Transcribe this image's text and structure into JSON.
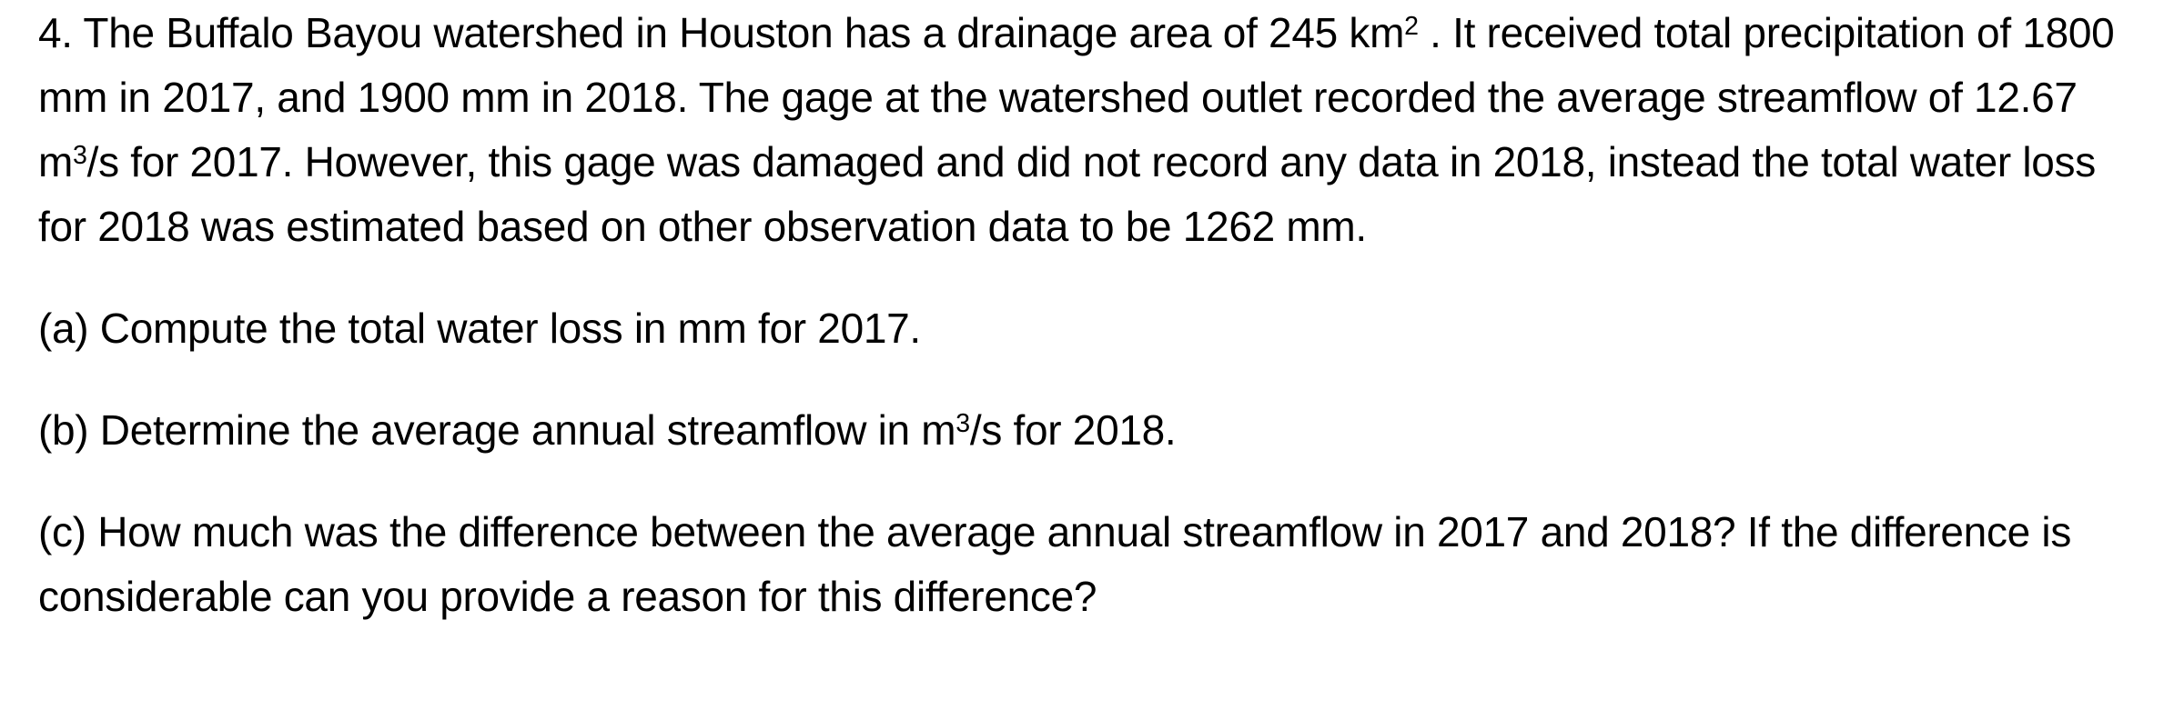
{
  "page": {
    "background_color": "#ffffff",
    "text_color": "#000000"
  },
  "problem": {
    "number": "4.",
    "intro_segments": [
      {
        "text": "4. The Buffalo Bayou watershed in Houston has a drainage area of 245 km"
      },
      {
        "text": "2",
        "superscript": true
      },
      {
        "text": " . It received total precipitation of 1800 mm in 2017, and 1900 mm in 2018. The gage at the watershed outlet recorded the average streamflow of 12.67 m"
      },
      {
        "text": "3",
        "superscript": true
      },
      {
        "text": "/s for 2017. However, this gage was damaged and did not record any data in 2018, instead the total water loss for 2018 was estimated based on other observation data to be 1262 mm."
      }
    ],
    "parts": [
      {
        "id": "a",
        "segments": [
          {
            "text": "(a) Compute the total water loss in mm for 2017."
          }
        ]
      },
      {
        "id": "b",
        "segments": [
          {
            "text": "(b) Determine the average annual streamflow in m"
          },
          {
            "text": "3",
            "superscript": true
          },
          {
            "text": "/s for 2018."
          }
        ]
      },
      {
        "id": "c",
        "segments": [
          {
            "text": "(c) How much was the difference between the average annual streamflow in 2017 and 2018? If the difference is considerable can you provide a reason for this difference?"
          }
        ]
      }
    ]
  }
}
